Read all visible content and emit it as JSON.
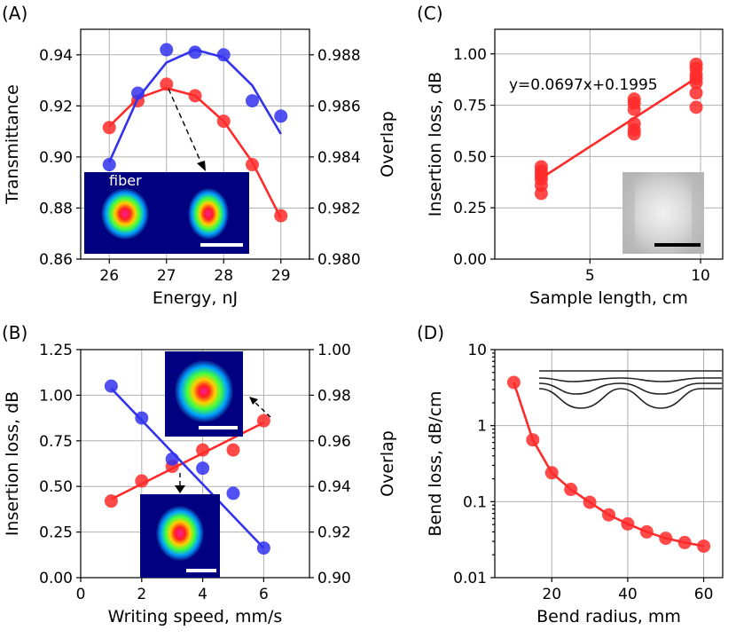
{
  "chart_data": [
    {
      "panel": "(A)",
      "type": "line",
      "xlabel": "Energy, nJ",
      "ylabel": "Transmittance",
      "ylabel_right": "Overlap",
      "xlim": [
        25.5,
        29.5
      ],
      "ylim": [
        0.86,
        0.95
      ],
      "ylim_right": [
        0.98,
        0.989
      ],
      "xticks": [
        26,
        27,
        28,
        29
      ],
      "yticks": [
        0.86,
        0.88,
        0.9,
        0.92,
        0.94
      ],
      "yticks_right": [
        0.98,
        0.982,
        0.984,
        0.986,
        0.988
      ],
      "grid": true,
      "series": [
        {
          "axis": "left",
          "color": "#ff2a2a",
          "x": [
            26,
            26.5,
            27,
            27.5,
            28,
            28.5,
            29
          ],
          "values": [
            0.9115,
            0.922,
            0.9285,
            0.924,
            0.914,
            0.897,
            0.877
          ],
          "fit_x": [
            26,
            26.5,
            27,
            27.5,
            28,
            28.5,
            29
          ],
          "fit": [
            0.912,
            0.923,
            0.927,
            0.924,
            0.914,
            0.898,
            0.876
          ]
        },
        {
          "axis": "right",
          "color": "#3333ee",
          "x": [
            26,
            26.5,
            27,
            27.5,
            28,
            28.5,
            29
          ],
          "values": [
            0.9837,
            0.9865,
            0.9882,
            0.9881,
            0.988,
            0.9862,
            0.9856
          ],
          "fit_x": [
            26,
            26.5,
            27,
            27.5,
            28,
            28.5,
            29
          ],
          "fit": [
            0.9838,
            0.9863,
            0.9877,
            0.9882,
            0.9879,
            0.9868,
            0.9849
          ]
        }
      ],
      "inset": {
        "label": "fiber"
      }
    },
    {
      "panel": "(B)",
      "type": "line",
      "xlabel": "Writing speed, mm/s",
      "ylabel": "Insertion loss, dB",
      "ylabel_right": "Overlap",
      "xlim": [
        0,
        7.5
      ],
      "ylim": [
        0,
        1.25
      ],
      "ylim_right": [
        0.9,
        1.0
      ],
      "xticks": [
        0,
        2,
        4,
        6
      ],
      "yticks": [
        0.0,
        0.25,
        0.5,
        0.75,
        1.0,
        1.25
      ],
      "yticks_right": [
        0.9,
        0.92,
        0.94,
        0.96,
        0.98,
        1.0
      ],
      "grid": true,
      "series": [
        {
          "axis": "left",
          "color": "#ff2a2a",
          "x": [
            1,
            2,
            3,
            4,
            5,
            6
          ],
          "values": [
            0.42,
            0.53,
            0.61,
            0.7,
            0.7,
            0.86
          ],
          "fit_x": [
            1,
            6
          ],
          "fit": [
            0.43,
            0.85
          ]
        },
        {
          "axis": "right",
          "color": "#3333ee",
          "x": [
            1,
            2,
            3,
            4,
            5,
            6
          ],
          "values": [
            0.984,
            0.97,
            0.952,
            0.948,
            0.937,
            0.913
          ],
          "fit_x": [
            1,
            6
          ],
          "fit": [
            0.983,
            0.913
          ]
        }
      ]
    },
    {
      "panel": "(C)",
      "type": "scatter",
      "xlabel": "Sample length, cm",
      "ylabel": "Insertion loss, dB",
      "xlim": [
        0.7,
        11
      ],
      "ylim": [
        0,
        1.12
      ],
      "xticks": [
        5,
        10
      ],
      "yticks": [
        0.0,
        0.25,
        0.5,
        0.75,
        1.0
      ],
      "grid": true,
      "annotation": "y=0.0697x+0.1995",
      "series": [
        {
          "color": "#ff2a2a",
          "x": [
            2.8,
            2.8,
            2.8,
            2.8,
            2.8,
            2.8,
            7.0,
            7.0,
            7.0,
            7.0,
            7.0,
            7.0,
            9.8,
            9.8,
            9.8,
            9.8,
            9.8,
            9.8,
            9.8
          ],
          "values": [
            0.32,
            0.36,
            0.39,
            0.41,
            0.43,
            0.45,
            0.61,
            0.63,
            0.66,
            0.73,
            0.76,
            0.78,
            0.74,
            0.81,
            0.86,
            0.88,
            0.9,
            0.93,
            0.95
          ],
          "fit_x": [
            2.8,
            9.8
          ],
          "fit": [
            0.3947,
            0.8826
          ]
        }
      ]
    },
    {
      "panel": "(D)",
      "type": "line",
      "xlabel": "Bend radius, mm",
      "ylabel": "Bend loss, dB/cm",
      "xlim": [
        5,
        65
      ],
      "ylim": [
        0.01,
        10
      ],
      "yscale": "log",
      "xticks": [
        20,
        40,
        60
      ],
      "yticks": [
        0.01,
        0.1,
        1,
        10
      ],
      "ytick_labels": [
        "0.01",
        "0.1",
        "1",
        "10"
      ],
      "grid": true,
      "series": [
        {
          "color": "#ff2a2a",
          "x": [
            10,
            15,
            20,
            25,
            30,
            35,
            40,
            45,
            50,
            55,
            60
          ],
          "values": [
            3.7,
            0.65,
            0.24,
            0.145,
            0.098,
            0.067,
            0.051,
            0.04,
            0.033,
            0.029,
            0.026
          ]
        }
      ]
    }
  ]
}
